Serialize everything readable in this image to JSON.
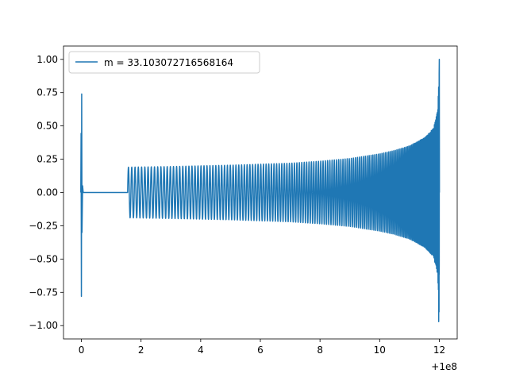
{
  "chart_data": {
    "type": "line",
    "title": "",
    "xlabel": "",
    "ylabel": "",
    "x_offset_label": "+1e8",
    "xlim": [
      -0.6,
      12.6
    ],
    "ylim": [
      -1.1,
      1.1
    ],
    "x_ticks": [
      {
        "value": 0,
        "label": "0"
      },
      {
        "value": 2,
        "label": "2"
      },
      {
        "value": 4,
        "label": "4"
      },
      {
        "value": 6,
        "label": "6"
      },
      {
        "value": 8,
        "label": "8"
      },
      {
        "value": 10,
        "label": "10"
      },
      {
        "value": 12,
        "label": "12"
      }
    ],
    "y_ticks": [
      {
        "value": 1.0,
        "label": "1.00"
      },
      {
        "value": 0.75,
        "label": "0.75"
      },
      {
        "value": 0.5,
        "label": "0.50"
      },
      {
        "value": 0.25,
        "label": "0.25"
      },
      {
        "value": 0.0,
        "label": "0.00"
      },
      {
        "value": -0.25,
        "label": "−0.25"
      },
      {
        "value": -0.5,
        "label": "−0.50"
      },
      {
        "value": -0.75,
        "label": "−0.75"
      },
      {
        "value": -1.0,
        "label": "−1.00"
      }
    ],
    "grid": false,
    "legend_position": "upper-left",
    "series": [
      {
        "name": "m = 33.103072716568164",
        "color": "#1f77b4",
        "envelope": [
          [
            1.55,
            0.19
          ],
          [
            3.0,
            0.195
          ],
          [
            5.0,
            0.205
          ],
          [
            7.0,
            0.22
          ],
          [
            8.0,
            0.235
          ],
          [
            9.0,
            0.255
          ],
          [
            10.0,
            0.29
          ],
          [
            10.5,
            0.315
          ],
          [
            11.0,
            0.35
          ],
          [
            11.5,
            0.41
          ],
          [
            11.8,
            0.48
          ],
          [
            11.95,
            0.62
          ],
          [
            12.0,
            1.0
          ]
        ],
        "negative_peak": -0.97,
        "burst_at_zero": {
          "max": 0.74,
          "min": -0.78
        },
        "flat_segment": [
          0.1,
          1.55
        ]
      }
    ]
  }
}
